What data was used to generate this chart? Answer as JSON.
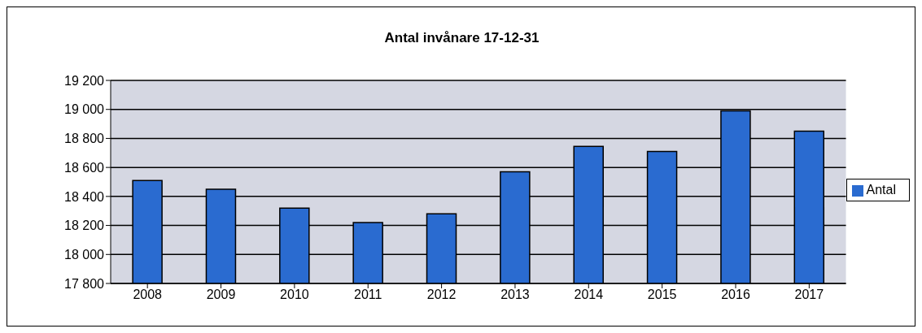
{
  "chart_data": {
    "type": "bar",
    "title": "Antal invånare 17-12-31",
    "categories": [
      "2008",
      "2009",
      "2010",
      "2011",
      "2012",
      "2013",
      "2014",
      "2015",
      "2016",
      "2017"
    ],
    "series": [
      {
        "name": "Antal",
        "color": "#2a6bd0",
        "values": [
          18510,
          18450,
          18320,
          18220,
          18280,
          18570,
          18745,
          18710,
          18990,
          18850
        ]
      }
    ],
    "ylim": [
      17800,
      19200
    ],
    "yticks": [
      {
        "value": 17800,
        "label": "17 800"
      },
      {
        "value": 18000,
        "label": "18 000"
      },
      {
        "value": 18200,
        "label": "18 200"
      },
      {
        "value": 18400,
        "label": "18 400"
      },
      {
        "value": 18600,
        "label": "18 600"
      },
      {
        "value": 18800,
        "label": "18 800"
      },
      {
        "value": 19000,
        "label": "19 000"
      },
      {
        "value": 19200,
        "label": "19 200"
      }
    ],
    "grid": "y",
    "legend": "right"
  }
}
